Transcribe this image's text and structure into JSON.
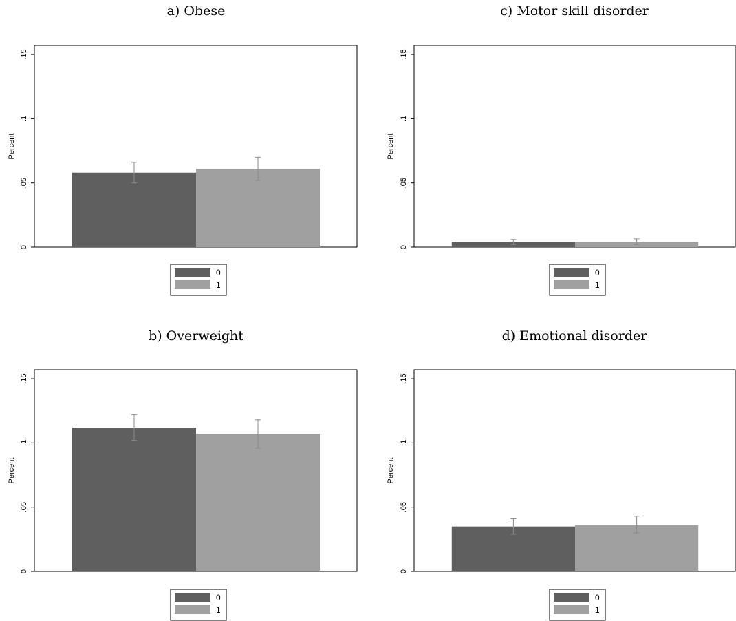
{
  "chart_data": [
    {
      "type": "bar",
      "title": "a) Obese",
      "ylabel": "Percent",
      "ylim": [
        0,
        0.157
      ],
      "yticks": [
        0,
        0.05,
        0.1,
        0.15
      ],
      "ytick_labels": [
        "0",
        ".05",
        ".1",
        ".15"
      ],
      "series": [
        {
          "name": "0",
          "value": 0.058,
          "ci_low": 0.05,
          "ci_high": 0.066,
          "color": "#5f5f5f"
        },
        {
          "name": "1",
          "value": 0.061,
          "ci_low": 0.052,
          "ci_high": 0.07,
          "color": "#a0a0a0"
        }
      ],
      "legend": {
        "position": "bottom-center",
        "entries": [
          "0",
          "1"
        ]
      }
    },
    {
      "type": "bar",
      "title": "c) Motor skill disorder",
      "ylabel": "Percent",
      "ylim": [
        0,
        0.157
      ],
      "yticks": [
        0,
        0.05,
        0.1,
        0.15
      ],
      "ytick_labels": [
        "0",
        ".05",
        ".1",
        ".15"
      ],
      "series": [
        {
          "name": "0",
          "value": 0.004,
          "ci_low": 0.002,
          "ci_high": 0.006,
          "color": "#5f5f5f"
        },
        {
          "name": "1",
          "value": 0.004,
          "ci_low": 0.002,
          "ci_high": 0.0065,
          "color": "#a0a0a0"
        }
      ],
      "legend": {
        "position": "bottom-center",
        "entries": [
          "0",
          "1"
        ]
      }
    },
    {
      "type": "bar",
      "title": "b) Overweight",
      "ylabel": "Percent",
      "ylim": [
        0,
        0.157
      ],
      "yticks": [
        0,
        0.05,
        0.1,
        0.15
      ],
      "ytick_labels": [
        "0",
        ".05",
        ".1",
        ".15"
      ],
      "series": [
        {
          "name": "0",
          "value": 0.112,
          "ci_low": 0.102,
          "ci_high": 0.122,
          "color": "#5f5f5f"
        },
        {
          "name": "1",
          "value": 0.107,
          "ci_low": 0.096,
          "ci_high": 0.118,
          "color": "#a0a0a0"
        }
      ],
      "legend": {
        "position": "bottom-center",
        "entries": [
          "0",
          "1"
        ]
      }
    },
    {
      "type": "bar",
      "title": "d) Emotional disorder",
      "ylabel": "Percent",
      "ylim": [
        0,
        0.157
      ],
      "yticks": [
        0,
        0.05,
        0.1,
        0.15
      ],
      "ytick_labels": [
        "0",
        ".05",
        ".1",
        ".15"
      ],
      "series": [
        {
          "name": "0",
          "value": 0.035,
          "ci_low": 0.029,
          "ci_high": 0.041,
          "color": "#5f5f5f"
        },
        {
          "name": "1",
          "value": 0.036,
          "ci_low": 0.03,
          "ci_high": 0.043,
          "color": "#a0a0a0"
        }
      ],
      "legend": {
        "position": "bottom-center",
        "entries": [
          "0",
          "1"
        ]
      }
    }
  ]
}
